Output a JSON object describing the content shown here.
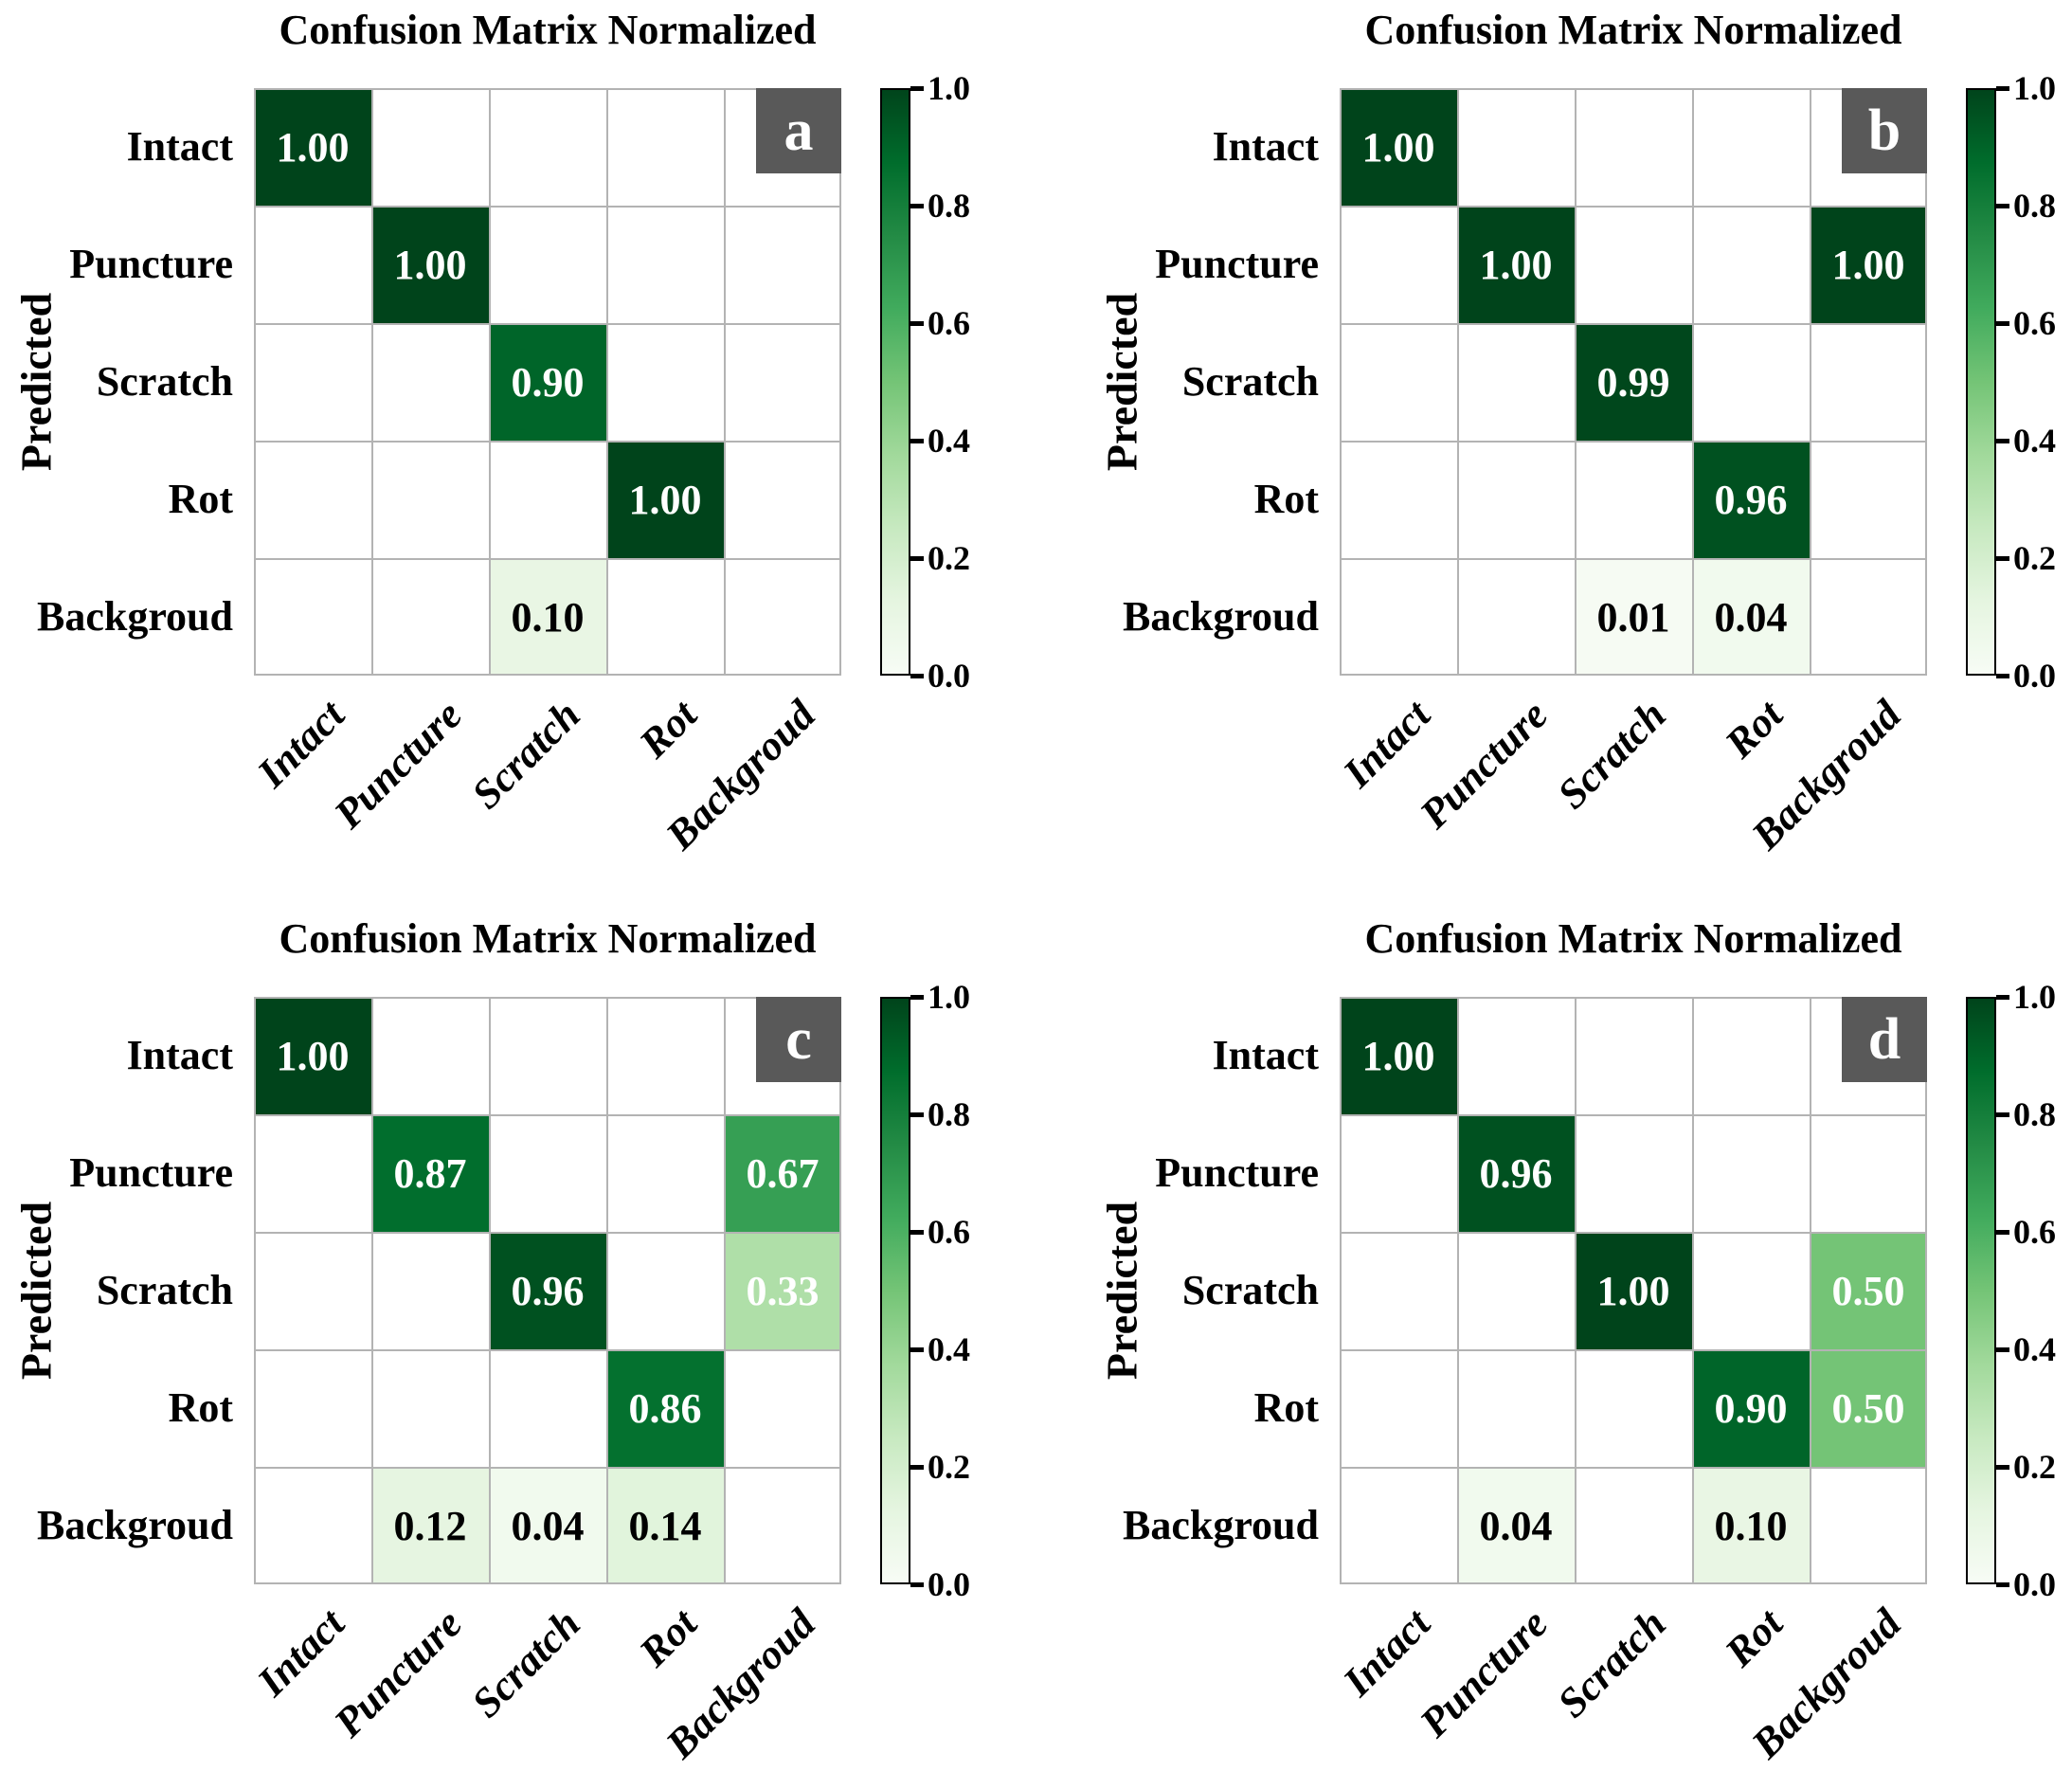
{
  "panels": [
    {
      "id": "a",
      "letter": "a",
      "title": "Confusion Matrix Normalized",
      "ylabel": "Predicted"
    },
    {
      "id": "b",
      "letter": "b",
      "title": "Confusion Matrix Normalized",
      "ylabel": "Predicted"
    },
    {
      "id": "c",
      "letter": "c",
      "title": "Confusion Matrix Normalized",
      "ylabel": "Predicted"
    },
    {
      "id": "d",
      "letter": "d",
      "title": "Confusion Matrix Normalized",
      "ylabel": "Predicted"
    }
  ],
  "chart_data": [
    {
      "type": "heatmap",
      "panel": "a",
      "title": "Confusion Matrix Normalized",
      "ylabel": "Predicted",
      "x_categories": [
        "Intact",
        "Puncture",
        "Scratch",
        "Rot",
        "Backgroud"
      ],
      "y_categories": [
        "Intact",
        "Puncture",
        "Scratch",
        "Rot",
        "Backgroud"
      ],
      "matrix": [
        [
          1.0,
          null,
          null,
          null,
          null
        ],
        [
          null,
          1.0,
          null,
          null,
          null
        ],
        [
          null,
          null,
          0.9,
          null,
          null
        ],
        [
          null,
          null,
          null,
          1.0,
          null
        ],
        [
          null,
          null,
          0.1,
          null,
          null
        ]
      ],
      "colorbar": {
        "min": 0.0,
        "max": 1.0,
        "tick_labels": [
          "1.0",
          "0.8",
          "0.6",
          "0.4",
          "0.2",
          "0.0"
        ]
      }
    },
    {
      "type": "heatmap",
      "panel": "b",
      "title": "Confusion Matrix Normalized",
      "ylabel": "Predicted",
      "x_categories": [
        "Intact",
        "Puncture",
        "Scratch",
        "Rot",
        "Backgroud"
      ],
      "y_categories": [
        "Intact",
        "Puncture",
        "Scratch",
        "Rot",
        "Backgroud"
      ],
      "matrix": [
        [
          1.0,
          null,
          null,
          null,
          null
        ],
        [
          null,
          1.0,
          null,
          null,
          1.0
        ],
        [
          null,
          null,
          0.99,
          null,
          null
        ],
        [
          null,
          null,
          null,
          0.96,
          null
        ],
        [
          null,
          null,
          0.01,
          0.04,
          null
        ]
      ],
      "colorbar": {
        "min": 0.0,
        "max": 1.0,
        "tick_labels": [
          "1.0",
          "0.8",
          "0.6",
          "0.4",
          "0.2",
          "0.0"
        ]
      }
    },
    {
      "type": "heatmap",
      "panel": "c",
      "title": "Confusion Matrix Normalized",
      "ylabel": "Predicted",
      "x_categories": [
        "Intact",
        "Puncture",
        "Scratch",
        "Rot",
        "Backgroud"
      ],
      "y_categories": [
        "Intact",
        "Puncture",
        "Scratch",
        "Rot",
        "Backgroud"
      ],
      "matrix": [
        [
          1.0,
          null,
          null,
          null,
          null
        ],
        [
          null,
          0.87,
          null,
          null,
          0.67
        ],
        [
          null,
          null,
          0.96,
          null,
          0.33
        ],
        [
          null,
          null,
          null,
          0.86,
          null
        ],
        [
          null,
          0.12,
          0.04,
          0.14,
          null
        ]
      ],
      "colorbar": {
        "min": 0.0,
        "max": 1.0,
        "tick_labels": [
          "1.0",
          "0.8",
          "0.6",
          "0.4",
          "0.2",
          "0.0"
        ]
      }
    },
    {
      "type": "heatmap",
      "panel": "d",
      "title": "Confusion Matrix Normalized",
      "ylabel": "Predicted",
      "x_categories": [
        "Intact",
        "Puncture",
        "Scratch",
        "Rot",
        "Backgroud"
      ],
      "y_categories": [
        "Intact",
        "Puncture",
        "Scratch",
        "Rot",
        "Backgroud"
      ],
      "matrix": [
        [
          1.0,
          null,
          null,
          null,
          null
        ],
        [
          null,
          0.96,
          null,
          null,
          null
        ],
        [
          null,
          null,
          1.0,
          null,
          0.5
        ],
        [
          null,
          null,
          null,
          0.9,
          0.5
        ],
        [
          null,
          0.04,
          null,
          0.1,
          null
        ]
      ],
      "colorbar": {
        "min": 0.0,
        "max": 1.0,
        "tick_labels": [
          "1.0",
          "0.8",
          "0.6",
          "0.4",
          "0.2",
          "0.0"
        ]
      }
    }
  ],
  "colors": {
    "greens_colormap": [
      "#f7fcf5",
      "#e5f5e0",
      "#c7e9c0",
      "#a1d99b",
      "#74c476",
      "#41ab5d",
      "#238b45",
      "#006d2c",
      "#00441b"
    ],
    "letter_box_bg": "#595959",
    "letter_text": "#ffffff",
    "grid_line": "#b3b3b3",
    "value_text_dark_bg": "#ffffff",
    "value_text_light_bg": "#000000",
    "empty_cell": "#ffffff",
    "colorbar_border": "#000000"
  }
}
